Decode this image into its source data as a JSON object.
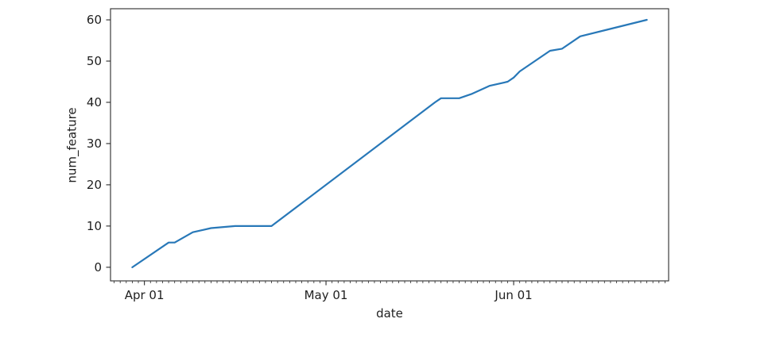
{
  "chart_data": {
    "type": "line",
    "title": "",
    "xlabel": "date",
    "ylabel": "num_feature",
    "grid": false,
    "legend": false,
    "x_axis": {
      "unit": "days from Apr 01",
      "xlim_days": [
        -5.6,
        86.6
      ],
      "major_ticks": [
        {
          "label": "Apr 01",
          "day": 0
        },
        {
          "label": "May 01",
          "day": 30
        },
        {
          "label": "Jun 01",
          "day": 61
        }
      ],
      "minor_tick_every_days": 1
    },
    "y_axis": {
      "ticks": [
        0,
        10,
        20,
        30,
        40,
        50,
        60
      ],
      "ylim": [
        -3.3,
        62.7
      ]
    },
    "series": [
      {
        "name": "num_feature",
        "color": "#2878b8",
        "points": [
          {
            "date": "Mar 30",
            "day": -2,
            "value": 0
          },
          {
            "date": "Apr 05",
            "day": 4,
            "value": 6
          },
          {
            "date": "Apr 06",
            "day": 5,
            "value": 6
          },
          {
            "date": "Apr 09",
            "day": 8,
            "value": 8.5
          },
          {
            "date": "Apr 12",
            "day": 11,
            "value": 9.5
          },
          {
            "date": "Apr 16",
            "day": 15,
            "value": 10
          },
          {
            "date": "Apr 22",
            "day": 21,
            "value": 10
          },
          {
            "date": "May 19",
            "day": 48,
            "value": 40
          },
          {
            "date": "May 20",
            "day": 49,
            "value": 41
          },
          {
            "date": "May 23",
            "day": 52,
            "value": 41
          },
          {
            "date": "May 25",
            "day": 54,
            "value": 42
          },
          {
            "date": "May 28",
            "day": 57,
            "value": 44
          },
          {
            "date": "May 31",
            "day": 60,
            "value": 45
          },
          {
            "date": "Jun 01",
            "day": 61,
            "value": 46
          },
          {
            "date": "Jun 02",
            "day": 62,
            "value": 47.5
          },
          {
            "date": "Jun 07",
            "day": 67,
            "value": 52.5
          },
          {
            "date": "Jun 09",
            "day": 69,
            "value": 53
          },
          {
            "date": "Jun 12",
            "day": 72,
            "value": 56
          },
          {
            "date": "Jun 23",
            "day": 83,
            "value": 60
          }
        ]
      }
    ],
    "colors": {
      "spine": "#2b2b2b",
      "tick": "#2b2b2b",
      "text": "#1f1f1f",
      "background": "#ffffff"
    }
  }
}
